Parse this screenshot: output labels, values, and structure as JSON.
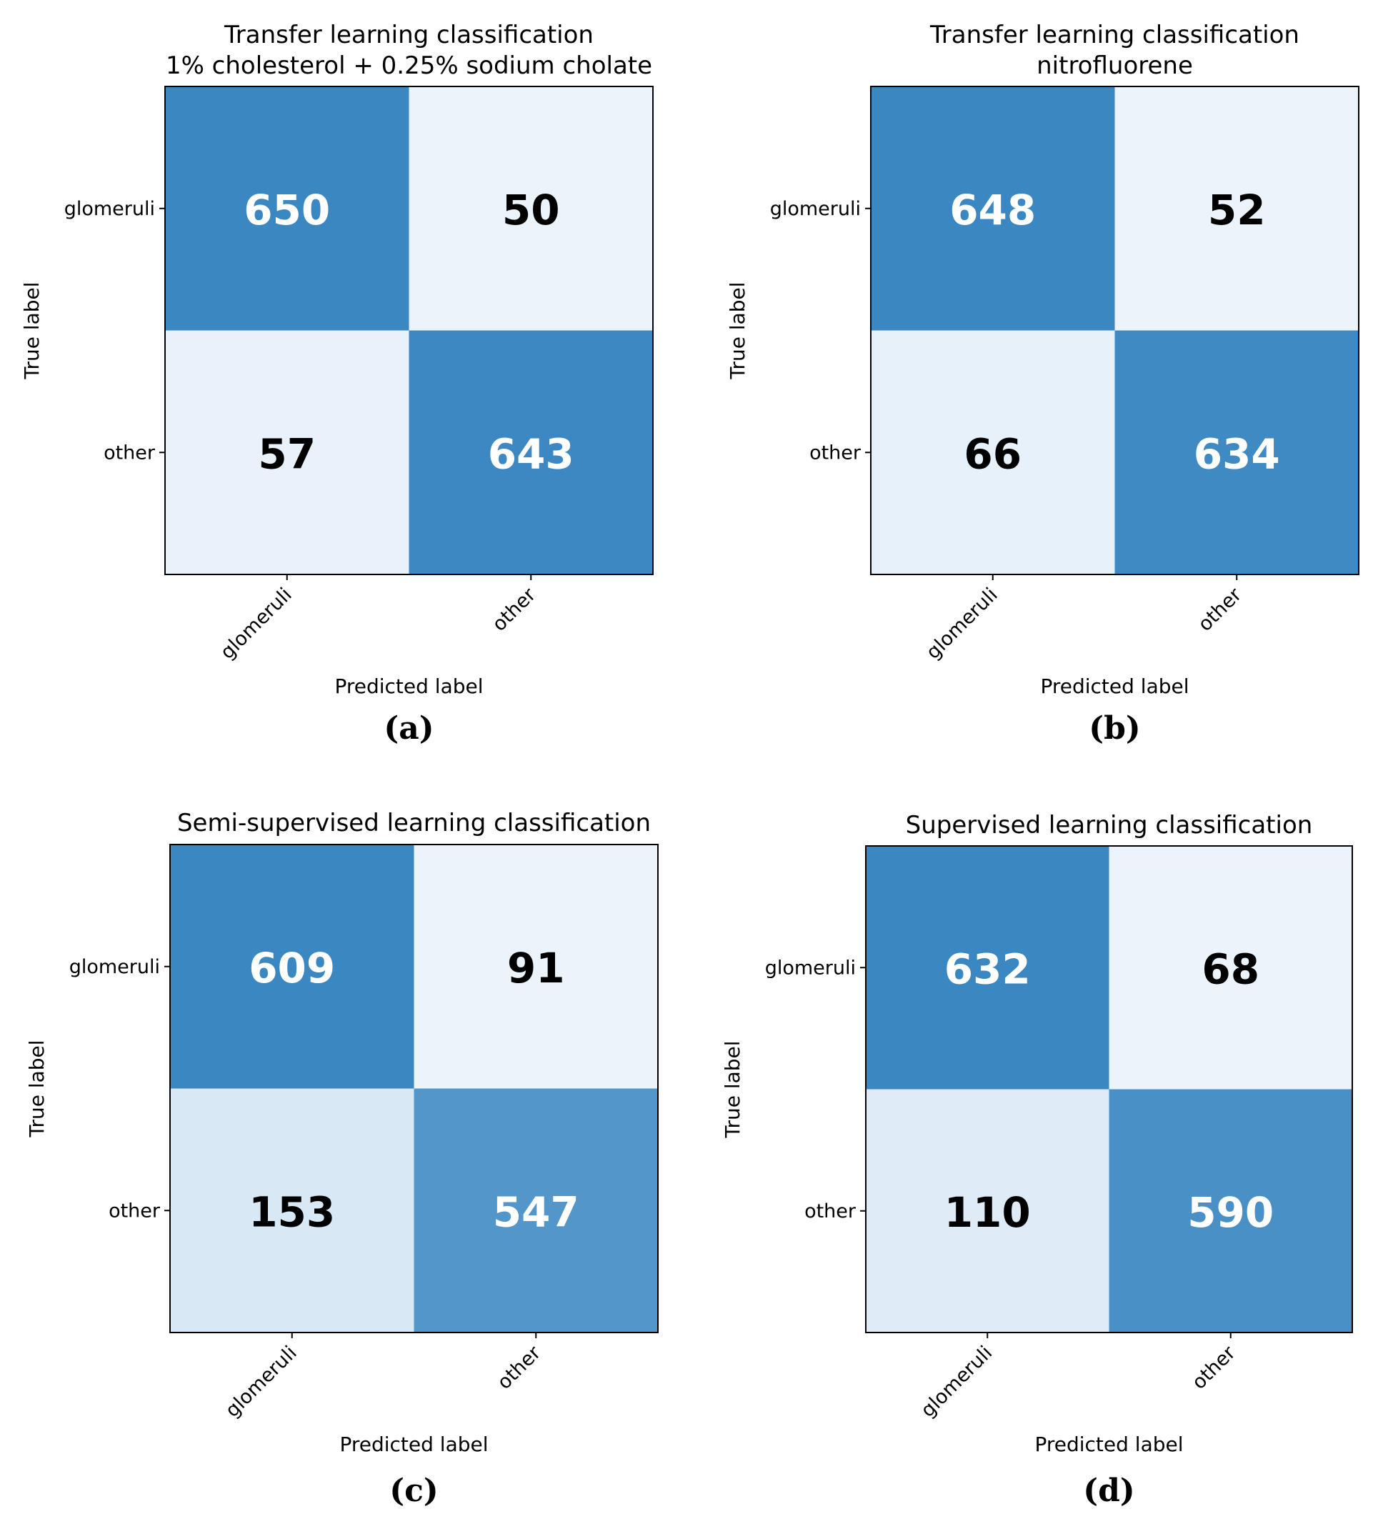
{
  "chart_data": [
    {
      "type": "heatmap",
      "panel_label": "(a)",
      "title_lines": [
        "Transfer learning classification",
        "1% cholesterol + 0.25% sodium cholate"
      ],
      "xlabel": "Predicted label",
      "ylabel": "True label",
      "x_categories": [
        "glomeruli",
        "other"
      ],
      "y_categories": [
        "glomeruli",
        "other"
      ],
      "values": [
        [
          650,
          50
        ],
        [
          57,
          643
        ]
      ],
      "color_range": [
        50,
        650
      ],
      "colormap": "Blues",
      "grid": false
    },
    {
      "type": "heatmap",
      "panel_label": "(b)",
      "title_lines": [
        "Transfer learning classification",
        "nitrofluorene"
      ],
      "xlabel": "Predicted label",
      "ylabel": "True label",
      "x_categories": [
        "glomeruli",
        "other"
      ],
      "y_categories": [
        "glomeruli",
        "other"
      ],
      "values": [
        [
          648,
          52
        ],
        [
          66,
          634
        ]
      ],
      "color_range": [
        52,
        648
      ],
      "colormap": "Blues",
      "grid": false
    },
    {
      "type": "heatmap",
      "panel_label": "(c)",
      "title_lines": [
        "Semi-supervised learning classification"
      ],
      "xlabel": "Predicted label",
      "ylabel": "True label",
      "x_categories": [
        "glomeruli",
        "other"
      ],
      "y_categories": [
        "glomeruli",
        "other"
      ],
      "values": [
        [
          609,
          91
        ],
        [
          153,
          547
        ]
      ],
      "color_range": [
        91,
        609
      ],
      "colormap": "Blues",
      "grid": false
    },
    {
      "type": "heatmap",
      "panel_label": "(d)",
      "title_lines": [
        "Supervised learning classification"
      ],
      "xlabel": "Predicted label",
      "ylabel": "True label",
      "x_categories": [
        "glomeruli",
        "other"
      ],
      "y_categories": [
        "glomeruli",
        "other"
      ],
      "values": [
        [
          632,
          68
        ],
        [
          110,
          590
        ]
      ],
      "color_range": [
        68,
        632
      ],
      "colormap": "Blues",
      "grid": false
    }
  ],
  "colors": {
    "cmap_low": "#ebf3fb",
    "cmap_mid": "#5aa2cf",
    "cmap_high": "#3b87c2",
    "axis": "#000000",
    "text_dark": "#000000",
    "text_light": "#ffffff"
  }
}
